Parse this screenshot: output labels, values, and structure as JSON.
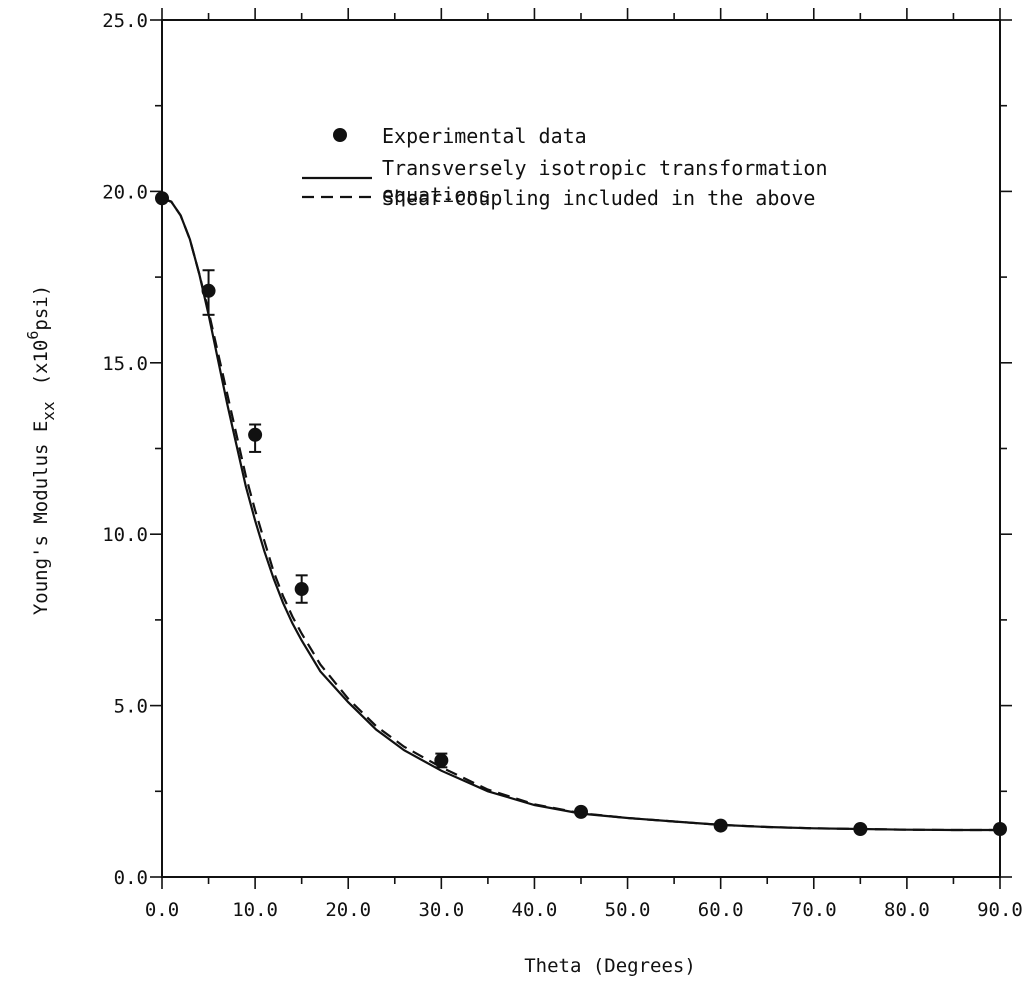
{
  "chart_data": {
    "type": "scatter",
    "title": "",
    "xlabel": "Theta (Degrees)",
    "ylabel": "Young's Modulus E",
    "ylabel_subscript": "xx",
    "ylabel_units_prefix": "(x10",
    "ylabel_units_superscript": "6",
    "ylabel_units_suffix": "psi)",
    "xlim": [
      0,
      90
    ],
    "ylim": [
      0,
      25
    ],
    "x_ticks": [
      0,
      10,
      20,
      30,
      40,
      50,
      60,
      70,
      80,
      90
    ],
    "x_tick_labels": [
      "0.0",
      "10.0",
      "20.0",
      "30.0",
      "40.0",
      "50.0",
      "60.0",
      "70.0",
      "80.0",
      "90.0"
    ],
    "y_ticks": [
      0,
      5,
      10,
      15,
      20,
      25
    ],
    "y_tick_labels": [
      "0.0",
      "5.0",
      "10.0",
      "15.0",
      "20.0",
      "25.0"
    ],
    "grid": false,
    "legend_position": "top-center",
    "legend": [
      {
        "marker": "circle",
        "label_lines": [
          "Experimental data"
        ]
      },
      {
        "marker": "solid-line",
        "label_lines": [
          "Transversely isotropic transformation",
          "equations"
        ]
      },
      {
        "marker": "dashed-line",
        "label_lines": [
          "Shear-coupling included in the above"
        ]
      }
    ],
    "series": [
      {
        "name": "Experimental data",
        "style": "points",
        "points": [
          {
            "x": 0,
            "y": 19.8,
            "err_low": 19.8,
            "err_high": 19.8
          },
          {
            "x": 5,
            "y": 17.1,
            "err_low": 16.4,
            "err_high": 17.7
          },
          {
            "x": 10,
            "y": 12.9,
            "err_low": 12.4,
            "err_high": 13.2
          },
          {
            "x": 15,
            "y": 8.4,
            "err_low": 8.0,
            "err_high": 8.8
          },
          {
            "x": 30,
            "y": 3.4,
            "err_low": 3.2,
            "err_high": 3.6
          },
          {
            "x": 45,
            "y": 1.9,
            "err_low": 1.9,
            "err_high": 1.9
          },
          {
            "x": 60,
            "y": 1.5,
            "err_low": 1.5,
            "err_high": 1.5
          },
          {
            "x": 75,
            "y": 1.4,
            "err_low": 1.4,
            "err_high": 1.4
          },
          {
            "x": 90,
            "y": 1.4,
            "err_low": 1.4,
            "err_high": 1.4
          }
        ]
      },
      {
        "name": "Transversely isotropic transformation equations",
        "style": "solid",
        "x": [
          0,
          1,
          2,
          3,
          4,
          5,
          6,
          7,
          8,
          9,
          10,
          11,
          12,
          13,
          14,
          15,
          17,
          20,
          23,
          26,
          30,
          35,
          40,
          45,
          50,
          55,
          60,
          65,
          70,
          75,
          80,
          85,
          90
        ],
        "y": [
          19.8,
          19.7,
          19.3,
          18.6,
          17.6,
          16.4,
          15.1,
          13.8,
          12.6,
          11.4,
          10.4,
          9.5,
          8.7,
          8.0,
          7.4,
          6.9,
          6.0,
          5.1,
          4.3,
          3.7,
          3.1,
          2.5,
          2.1,
          1.85,
          1.72,
          1.62,
          1.52,
          1.46,
          1.42,
          1.4,
          1.38,
          1.37,
          1.37
        ]
      },
      {
        "name": "Shear-coupling included in the above",
        "style": "dashed",
        "x": [
          0,
          1,
          2,
          3,
          4,
          5,
          6,
          7,
          8,
          9,
          10,
          11,
          12,
          13,
          14,
          15,
          17,
          20,
          23,
          26,
          30,
          35,
          40,
          45,
          50,
          55,
          60,
          65,
          70,
          75,
          80,
          85,
          90
        ],
        "y": [
          19.8,
          19.7,
          19.3,
          18.6,
          17.6,
          16.5,
          15.3,
          14.1,
          12.9,
          11.7,
          10.7,
          9.8,
          8.9,
          8.2,
          7.6,
          7.1,
          6.2,
          5.2,
          4.4,
          3.8,
          3.2,
          2.55,
          2.12,
          1.86,
          1.72,
          1.62,
          1.52,
          1.46,
          1.42,
          1.4,
          1.38,
          1.37,
          1.37
        ]
      }
    ]
  }
}
